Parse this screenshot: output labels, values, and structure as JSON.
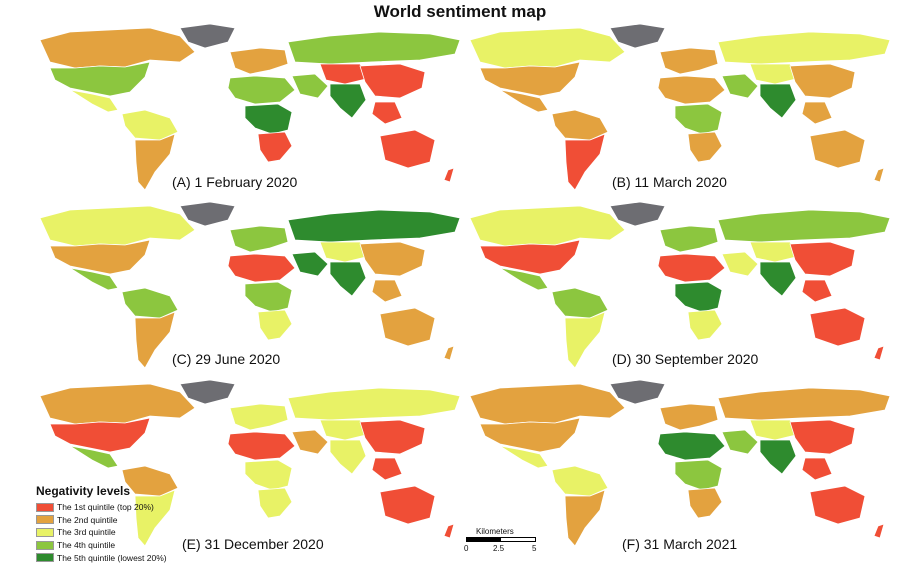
{
  "title": "World sentiment map",
  "panels": [
    {
      "caption": "(A) 1 February 2020"
    },
    {
      "caption": "(B) 11 March 2020"
    },
    {
      "caption": "(C) 29 June 2020"
    },
    {
      "caption": "(D) 30 September 2020"
    },
    {
      "caption": "(E) 31 December 2020"
    },
    {
      "caption": "(F) 31 March 2021"
    }
  ],
  "legend": {
    "title": "Negativity levels",
    "items": [
      {
        "label": "The 1st quintile (top 20%)",
        "color": "#f04e36"
      },
      {
        "label": "The 2nd quintile",
        "color": "#e3a23f"
      },
      {
        "label": "The 3rd quintile",
        "color": "#e8f266"
      },
      {
        "label": "The 4th quintile",
        "color": "#8cc63f"
      },
      {
        "label": "The 5th quintile (lowest 20%)",
        "color": "#2e8b2e"
      }
    ]
  },
  "scale": {
    "title": "Kilometers",
    "ticks": [
      "0",
      "2.5",
      "5"
    ]
  },
  "colors": {
    "greenland": "#6d6d72"
  },
  "region_colors": [
    [
      "#e3a23f",
      "#8cc63f",
      "#e8f266",
      "#e8f266",
      "#e3a23f",
      "#e3a23f",
      "#8cc63f",
      "#2e8b2e",
      "#f04e36",
      "#8cc63f",
      "#8cc63f",
      "#f04e36",
      "#f04e36",
      "#2e8b2e"
    ],
    [
      "#e8f266",
      "#e3a23f",
      "#e3a23f",
      "#e3a23f",
      "#f04e36",
      "#e3a23f",
      "#e3a23f",
      "#8cc63f",
      "#e3a23f",
      "#8cc63f",
      "#e8f266",
      "#e8f266",
      "#e3a23f",
      "#2e8b2e"
    ],
    [
      "#e8f266",
      "#e3a23f",
      "#8cc63f",
      "#8cc63f",
      "#e3a23f",
      "#8cc63f",
      "#f04e36",
      "#8cc63f",
      "#e8f266",
      "#2e8b2e",
      "#2e8b2e",
      "#e8f266",
      "#e3a23f",
      "#2e8b2e"
    ],
    [
      "#e8f266",
      "#f04e36",
      "#8cc63f",
      "#8cc63f",
      "#e8f266",
      "#8cc63f",
      "#f04e36",
      "#2e8b2e",
      "#e8f266",
      "#e8f266",
      "#8cc63f",
      "#e8f266",
      "#f04e36",
      "#2e8b2e"
    ],
    [
      "#e3a23f",
      "#f04e36",
      "#8cc63f",
      "#e3a23f",
      "#e8f266",
      "#e8f266",
      "#f04e36",
      "#e8f266",
      "#e8f266",
      "#e3a23f",
      "#e8f266",
      "#e8f266",
      "#f04e36",
      "#e8f266"
    ],
    [
      "#e3a23f",
      "#e3a23f",
      "#e8f266",
      "#e8f266",
      "#e3a23f",
      "#e3a23f",
      "#2e8b2e",
      "#8cc63f",
      "#e3a23f",
      "#8cc63f",
      "#e3a23f",
      "#e8f266",
      "#f04e36",
      "#2e8b2e"
    ]
  ]
}
